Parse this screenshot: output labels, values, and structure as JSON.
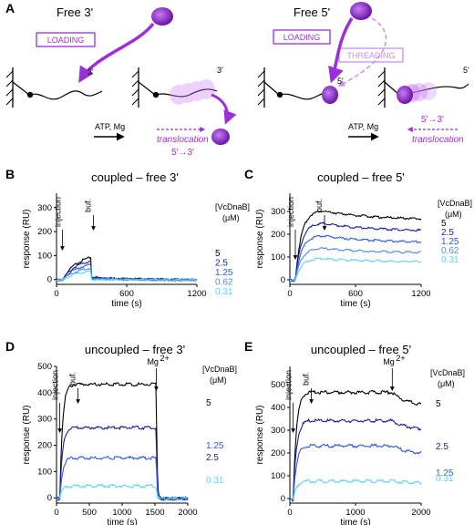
{
  "schematic": {
    "panel_label": "A",
    "left": {
      "title": "Free 3'",
      "loading": "LOADING",
      "end_label_1": "3'",
      "end_label_2": "3'",
      "condition": "ATP, Mg",
      "translocation": "translocation",
      "direction": "5'→3'"
    },
    "right": {
      "title": "Free 5'",
      "loading": "LOADING",
      "threading": "THREADING",
      "end_label_1": "5'",
      "end_label_2": "5'",
      "condition": "ATP, Mg",
      "translocation": "translocation",
      "direction": "5'→3'"
    },
    "colors": {
      "helicase": "#9b30d9",
      "helicase_light": "#d7aaf0",
      "dna": "#000000"
    }
  },
  "chart_data": [
    {
      "panel": "B",
      "type": "line",
      "title": "coupled – free 3'",
      "xlabel": "time (s)",
      "ylabel": "response (RU)",
      "xlim": [
        0,
        1200
      ],
      "ylim": [
        -20,
        360
      ],
      "xticks": [
        0,
        600,
        1200
      ],
      "yticks": [
        0,
        100,
        200,
        300
      ],
      "legend_title_1": "[VcDnaB]",
      "legend_title_2": "(μM)",
      "annotations": {
        "injection": "injection",
        "buffer": "buf.",
        "injection_time": 50,
        "buffer_time": 300
      },
      "series": [
        {
          "name": "5",
          "color": "#000000",
          "peak": 95,
          "after": 12
        },
        {
          "name": "2.5",
          "color": "#1c1c9e",
          "peak": 80,
          "after": 9
        },
        {
          "name": "1.25",
          "color": "#2d5ad6",
          "peak": 65,
          "after": 7
        },
        {
          "name": "0.62",
          "color": "#4f8fe8",
          "peak": 50,
          "after": 5
        },
        {
          "name": "0.31",
          "color": "#5fd3f3",
          "peak": 36,
          "after": 3
        }
      ]
    },
    {
      "panel": "C",
      "type": "line",
      "title": "coupled – free 5'",
      "xlabel": "time (s)",
      "ylabel": "response (RU)",
      "xlim": [
        0,
        1200
      ],
      "ylim": [
        -20,
        380
      ],
      "xticks": [
        0,
        600,
        1200
      ],
      "yticks": [
        0,
        100,
        200,
        300
      ],
      "legend_title_1": "[VcDnaB]",
      "legend_title_2": "(μM)",
      "annotations": {
        "injection": "injection",
        "buffer": "buf.",
        "injection_time": 50,
        "buffer_time": 300
      },
      "series": [
        {
          "name": "5",
          "color": "#000000",
          "peak": 305,
          "end": 265
        },
        {
          "name": "2.5",
          "color": "#1c1c9e",
          "peak": 250,
          "end": 215
        },
        {
          "name": "1.25",
          "color": "#2d5ad6",
          "peak": 195,
          "end": 165
        },
        {
          "name": "0.62",
          "color": "#4f8fe8",
          "peak": 140,
          "end": 120
        },
        {
          "name": "0.31",
          "color": "#5fd3f3",
          "peak": 95,
          "end": 80
        }
      ]
    },
    {
      "panel": "D",
      "type": "line",
      "title": "uncoupled – free 3'",
      "xlabel": "time (s)",
      "ylabel": "response (RU)",
      "xlim": [
        0,
        2000
      ],
      "ylim": [
        -20,
        500
      ],
      "xticks": [
        0,
        500,
        1000,
        1500,
        2000
      ],
      "yticks": [
        0,
        100,
        200,
        300,
        400,
        500
      ],
      "legend_title_1": "[VcDnaB]",
      "legend_title_2": "(μM)",
      "annotations": {
        "injection": "injection",
        "buffer": "buf.",
        "mg": "Mg",
        "mg_sup": "2+",
        "injection_time": 50,
        "buffer_time": 300,
        "mg_time": 1520
      },
      "series": [
        {
          "name": "5",
          "color": "#000000",
          "plateau": 435
        },
        {
          "name": "2.5",
          "color": "#1c1c9e",
          "plateau": 270
        },
        {
          "name": "1.25",
          "color": "#2d5ad6",
          "plateau": 155
        },
        {
          "name": "0.31",
          "color": "#5fd3f3",
          "plateau": 48
        }
      ]
    },
    {
      "panel": "E",
      "type": "line",
      "title": "uncoupled – free 5'",
      "xlabel": "time (s)",
      "ylabel": "response (RU)",
      "xlim": [
        0,
        2000
      ],
      "ylim": [
        -20,
        580
      ],
      "xticks": [
        0,
        1000,
        2000
      ],
      "yticks": [
        0,
        100,
        200,
        300,
        400,
        500
      ],
      "legend_title_1": "[VcDnaB]",
      "legend_title_2": "(μM)",
      "annotations": {
        "injection": "injection",
        "buffer": "buf.",
        "mg": "Mg",
        "mg_sup": "2+",
        "injection_time": 50,
        "buffer_time": 300,
        "mg_time": 1560
      },
      "series": [
        {
          "name": "5",
          "color": "#000000",
          "plateau": 470,
          "end": 410
        },
        {
          "name": "2.5",
          "color": "#1c1c9e",
          "plateau": 345,
          "end": 305
        },
        {
          "name": "1.25",
          "color": "#2d5ad6",
          "plateau": 235,
          "end": 200
        },
        {
          "name": "0.31",
          "color": "#5fd3f3",
          "plateau": 80,
          "end": 72
        }
      ]
    }
  ]
}
